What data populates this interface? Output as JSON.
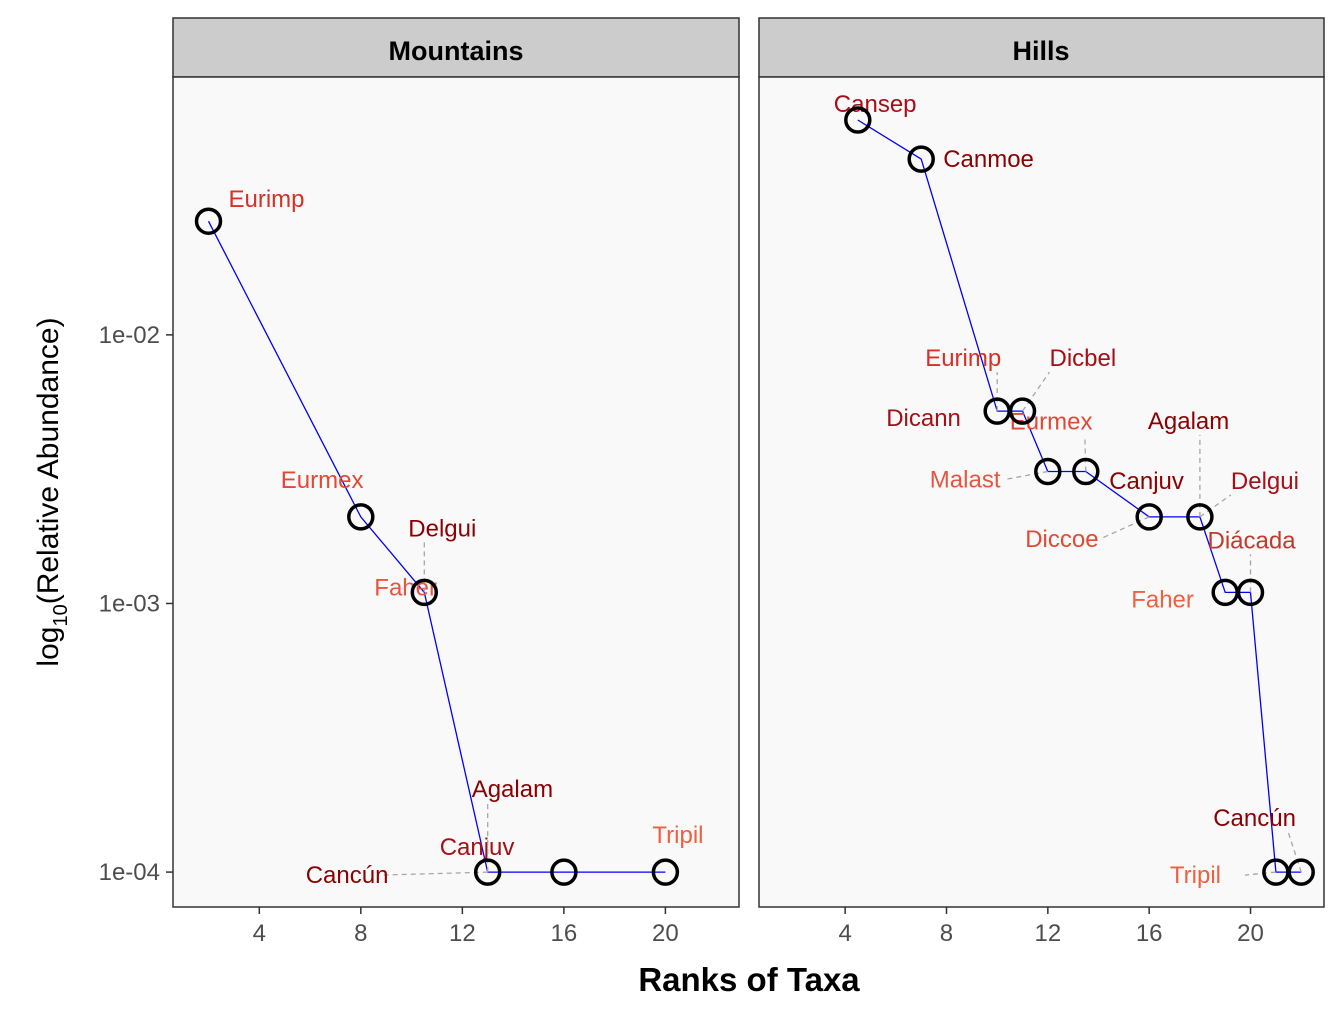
{
  "chart_data": {
    "type": "line",
    "xlabel": "Ranks of Taxa",
    "ylabel": {
      "prefix": "log",
      "subscript": "10",
      "text": "(Relative Abundance)"
    },
    "y_scale": "log10",
    "xlim": [
      0.6,
      22.9
    ],
    "ylim_log10": [
      -4.13,
      -1.04
    ],
    "x_ticks": [
      4,
      8,
      12,
      16,
      20
    ],
    "y_ticks": [
      {
        "value": 0.01,
        "label": "1e-02"
      },
      {
        "value": 0.001,
        "label": "1e-03"
      },
      {
        "value": 0.0001,
        "label": "1e-04"
      }
    ],
    "grid": false,
    "line_color": "#0000ff",
    "point_color": "#000000",
    "panel_background": "#f9f9f9",
    "strip_background": "#cccccc",
    "panels": [
      {
        "title": "Mountains",
        "points": [
          {
            "x": 2,
            "y": 0.0265,
            "label": "Eurimp",
            "color": "#d73027",
            "dx": 20,
            "dy": -14
          },
          {
            "x": 8,
            "y": 0.0021,
            "label": "Eurmex",
            "color": "#e04a35",
            "dx": -80,
            "dy": -29
          },
          {
            "x": 10.5,
            "y": 0.0011,
            "label": "Faher",
            "color": "#e8553f",
            "dx": -50,
            "dy": 3
          },
          {
            "x": 10.5,
            "y": 0.0011,
            "label": "Delgui",
            "color": "#8b0000",
            "dx": -16,
            "dy": -56,
            "leader": true
          },
          {
            "x": 13,
            "y": 0.0001,
            "label": "Canjuv",
            "color": "#a50f15",
            "dx": -48,
            "dy": -17
          },
          {
            "x": 13,
            "y": 0.0001,
            "label": "Agalam",
            "color": "#8b0000",
            "dx": -16,
            "dy": -75,
            "leader": true
          },
          {
            "x": 13,
            "y": 0.0001,
            "label": "Cancún",
            "color": "#8b0000",
            "dx": -182,
            "dy": 11,
            "leader": true
          },
          {
            "x": 16,
            "y": 0.0001,
            "label": "",
            "color": "#000000",
            "dx": 0,
            "dy": 0
          },
          {
            "x": 20,
            "y": 0.0001,
            "label": "Tripil",
            "color": "#f06040",
            "dx": -13,
            "dy": -29
          }
        ]
      },
      {
        "title": "Hills",
        "points": [
          {
            "x": 4.5,
            "y": 0.0631,
            "label": "Cansep",
            "color": "#a50f15",
            "dx": -24,
            "dy": -8
          },
          {
            "x": 7,
            "y": 0.0451,
            "label": "Canmoe",
            "color": "#8b0000",
            "dx": 22,
            "dy": 8
          },
          {
            "x": 10,
            "y": 0.0052,
            "label": "Eurimp",
            "color": "#d73027",
            "dx": -72,
            "dy": -45,
            "leader": true
          },
          {
            "x": 11,
            "y": 0.0052,
            "label": "Dicbel",
            "color": "#a50f15",
            "dx": 27,
            "dy": -45,
            "leader": true
          },
          {
            "x": 10,
            "y": 0.0052,
            "label": "Dicann",
            "color": "#a50f15",
            "dx": -111,
            "dy": 15
          },
          {
            "x": 12,
            "y": 0.0031,
            "label": "Malast",
            "color": "#e8553f",
            "dx": -118,
            "dy": 16,
            "leader": true
          },
          {
            "x": 13.5,
            "y": 0.0031,
            "label": "Eurmex",
            "color": "#e04a35",
            "dx": -76,
            "dy": -42,
            "leader": true
          },
          {
            "x": 16,
            "y": 0.0021,
            "label": "Canjuv",
            "color": "#8b0000",
            "dx": -40,
            "dy": -28
          },
          {
            "x": 18,
            "y": 0.0021,
            "label": "Agalam",
            "color": "#8b0000",
            "dx": -52,
            "dy": -88,
            "leader": true
          },
          {
            "x": 16,
            "y": 0.0021,
            "label": "Diccoe",
            "color": "#e04a35",
            "dx": -124,
            "dy": 30,
            "leader": true
          },
          {
            "x": 18,
            "y": 0.0021,
            "label": "Delgui",
            "color": "#a50f15",
            "dx": 31,
            "dy": -28,
            "leader": true
          },
          {
            "x": 19,
            "y": 0.0011,
            "label": "Faher",
            "color": "#f06040",
            "dx": -94,
            "dy": 15
          },
          {
            "x": 20,
            "y": 0.0011,
            "label": "Diácada",
            "color": "#c0392b",
            "dx": -43,
            "dy": -44,
            "leader": true
          },
          {
            "x": 21,
            "y": 0.0001,
            "label": "Tripil",
            "color": "#f06040",
            "dx": -106,
            "dy": 11,
            "leader": true
          },
          {
            "x": 22,
            "y": 0.0001,
            "label": "Cancún",
            "color": "#8b0000",
            "dx": -88,
            "dy": -46,
            "leader": true
          }
        ]
      }
    ]
  }
}
